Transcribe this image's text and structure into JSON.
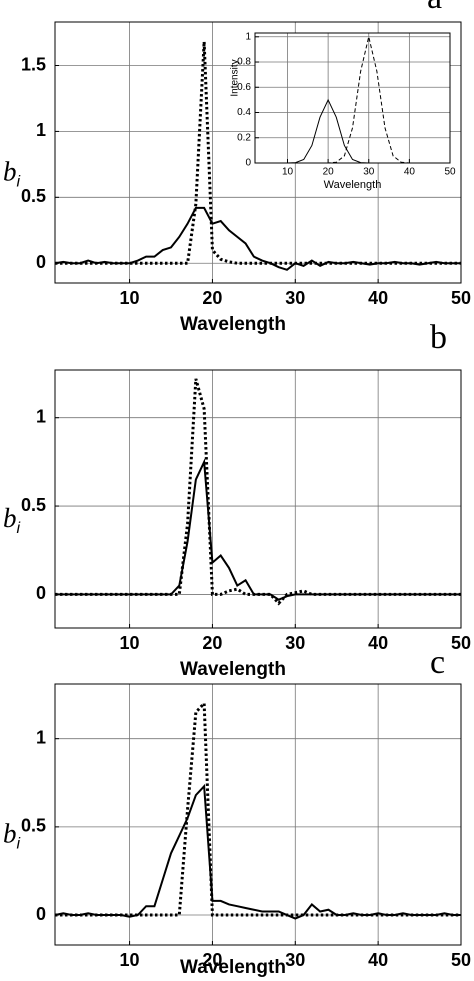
{
  "chart_data": [
    {
      "type": "line",
      "panel_label": "a",
      "x_label": "Wavelength",
      "y_label": "b",
      "y_label_subscript": "i",
      "x": [
        1,
        2,
        3,
        4,
        5,
        6,
        7,
        8,
        9,
        10,
        11,
        12,
        13,
        14,
        15,
        16,
        17,
        18,
        19,
        20,
        21,
        22,
        23,
        24,
        25,
        26,
        27,
        28,
        29,
        30,
        31,
        32,
        33,
        34,
        35,
        36,
        37,
        38,
        39,
        40,
        41,
        42,
        43,
        44,
        45,
        46,
        47,
        48,
        49,
        50
      ],
      "xlim": [
        1,
        50
      ],
      "xticks": [
        10,
        20,
        30,
        40,
        50
      ],
      "ylim": [
        -0.15,
        1.83
      ],
      "yticks": [
        0,
        0.5,
        1,
        1.5
      ],
      "grid": true,
      "series": [
        {
          "color": "#000000",
          "line_style": "solid",
          "values": [
            0,
            0.01,
            0,
            0,
            0.02,
            0,
            0.01,
            0,
            0,
            0,
            0.02,
            0.05,
            0.05,
            0.1,
            0.12,
            0.2,
            0.3,
            0.42,
            0.42,
            0.3,
            0.32,
            0.25,
            0.2,
            0.15,
            0.05,
            0.02,
            0,
            -0.03,
            -0.05,
            0,
            -0.02,
            0.02,
            -0.02,
            0.01,
            0,
            0,
            0.01,
            0,
            -0.01,
            0,
            0,
            0.01,
            0,
            0,
            -0.01,
            0,
            0.01,
            0,
            0,
            0
          ]
        },
        {
          "color": "#000000",
          "line_style": "dotted",
          "values": [
            0,
            0,
            0,
            0,
            0,
            0,
            0,
            0,
            0,
            0,
            0,
            0,
            0,
            0,
            0,
            0,
            0,
            0.45,
            1.68,
            0.1,
            0.03,
            0.01,
            0,
            0,
            0,
            0,
            0,
            0,
            0,
            0,
            0,
            0,
            0,
            0,
            0,
            0,
            0,
            0,
            0,
            0,
            0,
            0,
            0,
            0,
            0,
            0,
            0,
            0,
            0,
            0
          ]
        }
      ]
    },
    {
      "type": "line",
      "inset": true,
      "x_label": "Wavelength",
      "y_label": "Intensity",
      "x": [
        2,
        4,
        6,
        8,
        10,
        12,
        14,
        16,
        18,
        20,
        22,
        24,
        26,
        28,
        30,
        32,
        34,
        36,
        38,
        40,
        42,
        44,
        46,
        48,
        50
      ],
      "xlim": [
        2,
        50
      ],
      "xticks": [
        10,
        20,
        30,
        40,
        50
      ],
      "ylim": [
        0,
        1.03
      ],
      "yticks": [
        0,
        0.2,
        0.4,
        0.6,
        0.8,
        1
      ],
      "grid": true,
      "series": [
        {
          "color": "#000000",
          "line_style": "solid",
          "values": [
            0,
            0,
            0,
            0,
            0,
            0.003,
            0.028,
            0.139,
            0.363,
            0.5,
            0.363,
            0.139,
            0.028,
            0.003,
            0,
            0,
            0,
            0,
            0,
            0,
            0,
            0,
            0,
            0,
            0
          ]
        },
        {
          "color": "#000000",
          "line_style": "dashed",
          "values": [
            0,
            0,
            0,
            0,
            0,
            0,
            0,
            0,
            0,
            0,
            0.006,
            0.056,
            0.278,
            0.726,
            1,
            0.726,
            0.278,
            0.056,
            0.006,
            0,
            0,
            0,
            0,
            0,
            0
          ]
        }
      ]
    },
    {
      "type": "line",
      "panel_label": "b",
      "x_label": "Wavelength",
      "y_label": "b",
      "y_label_subscript": "i",
      "x": [
        1,
        2,
        3,
        4,
        5,
        6,
        7,
        8,
        9,
        10,
        11,
        12,
        13,
        14,
        15,
        16,
        17,
        18,
        19,
        20,
        21,
        22,
        23,
        24,
        25,
        26,
        27,
        28,
        29,
        30,
        31,
        32,
        33,
        34,
        35,
        36,
        37,
        38,
        39,
        40,
        41,
        42,
        43,
        44,
        45,
        46,
        47,
        48,
        49,
        50
      ],
      "xlim": [
        1,
        50
      ],
      "xticks": [
        10,
        20,
        30,
        40,
        50
      ],
      "ylim": [
        -0.19,
        1.27
      ],
      "yticks": [
        0,
        0.5,
        1
      ],
      "grid": true,
      "series": [
        {
          "color": "#000000",
          "line_style": "solid",
          "values": [
            0,
            0,
            0,
            0,
            0,
            0,
            0,
            0,
            0,
            0,
            0,
            0,
            0,
            0,
            0,
            0.05,
            0.3,
            0.65,
            0.75,
            0.18,
            0.22,
            0.15,
            0.05,
            0.08,
            0,
            0,
            0,
            -0.03,
            -0.01,
            0,
            0,
            0,
            0,
            0,
            0,
            0,
            0,
            0,
            0,
            0,
            0,
            0,
            0,
            0,
            0,
            0,
            0,
            0,
            0,
            0
          ]
        },
        {
          "color": "#000000",
          "line_style": "dotted",
          "values": [
            0,
            0,
            0,
            0,
            0,
            0,
            0,
            0,
            0,
            0,
            0,
            0,
            0,
            0,
            0,
            0,
            0.4,
            1.22,
            1.05,
            0,
            0,
            0.02,
            0.03,
            0,
            0,
            0,
            0,
            -0.05,
            0,
            0.01,
            0.02,
            0,
            0,
            0,
            0,
            0,
            0,
            0,
            0,
            0,
            0,
            0,
            0,
            0,
            0,
            0,
            0,
            0,
            0,
            0
          ]
        }
      ]
    },
    {
      "type": "line",
      "panel_label": "c",
      "x_label": "Wavelength",
      "y_label": "b",
      "y_label_subscript": "i",
      "x": [
        1,
        2,
        3,
        4,
        5,
        6,
        7,
        8,
        9,
        10,
        11,
        12,
        13,
        14,
        15,
        16,
        17,
        18,
        19,
        20,
        21,
        22,
        23,
        24,
        25,
        26,
        27,
        28,
        29,
        30,
        31,
        32,
        33,
        34,
        35,
        36,
        37,
        38,
        39,
        40,
        41,
        42,
        43,
        44,
        45,
        46,
        47,
        48,
        49,
        50
      ],
      "xlim": [
        1,
        50
      ],
      "xticks": [
        10,
        20,
        30,
        40,
        50
      ],
      "ylim": [
        -0.17,
        1.31
      ],
      "yticks": [
        0,
        0.5,
        1
      ],
      "grid": true,
      "series": [
        {
          "color": "#000000",
          "line_style": "solid",
          "values": [
            0,
            0.01,
            0,
            0,
            0.01,
            0,
            0,
            0,
            0,
            -0.01,
            0,
            0.05,
            0.05,
            0.2,
            0.35,
            0.45,
            0.55,
            0.68,
            0.73,
            0.08,
            0.08,
            0.06,
            0.05,
            0.04,
            0.03,
            0.02,
            0.02,
            0.02,
            0,
            -0.02,
            0,
            0.06,
            0.02,
            0.03,
            0,
            0,
            0.01,
            0,
            0,
            0.01,
            0,
            0,
            0.01,
            0,
            0,
            0,
            0,
            0.01,
            0,
            0
          ]
        },
        {
          "color": "#000000",
          "line_style": "dotted",
          "values": [
            0,
            0,
            0,
            0,
            0,
            0,
            0,
            0,
            0,
            0,
            0,
            0,
            0,
            0,
            0,
            0,
            0.6,
            1.15,
            1.2,
            0,
            0,
            0,
            0,
            0,
            0,
            0,
            0,
            0,
            0,
            0,
            0,
            0,
            0,
            0,
            0,
            0,
            0,
            0,
            0,
            0,
            0,
            0,
            0,
            0,
            0,
            0,
            0,
            0,
            0,
            0
          ]
        }
      ]
    }
  ]
}
